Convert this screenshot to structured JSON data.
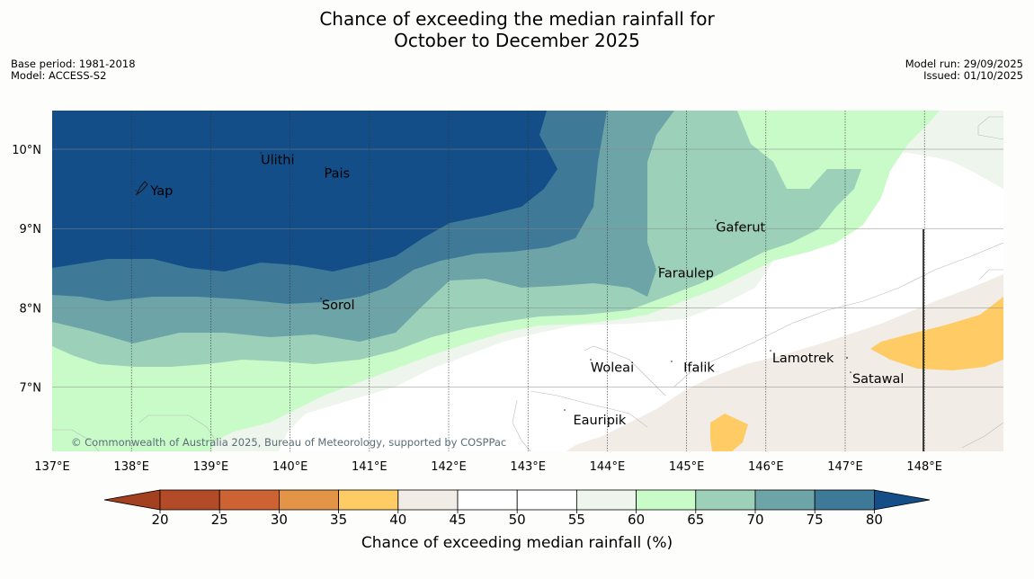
{
  "title": {
    "line1": "Chance of exceeding the median rainfall for",
    "line2": "October to December 2025"
  },
  "meta_left": {
    "base_period": "Base period: 1981-2018",
    "model": "Model: ACCESS-S2"
  },
  "meta_right": {
    "model_run": "Model run: 29/09/2025",
    "issued": "Issued: 01/10/2025"
  },
  "map": {
    "lat_labels": [
      "10°N",
      "9°N",
      "8°N",
      "7°N"
    ],
    "lon_labels": [
      "137°E",
      "138°E",
      "139°E",
      "140°E",
      "141°E",
      "142°E",
      "143°E",
      "144°E",
      "145°E",
      "146°E",
      "147°E",
      "148°E"
    ],
    "places": [
      "Yap",
      "Ulithi",
      "Pais",
      "Gaferut",
      "Faraulep",
      "Sorol",
      "Lamotrek",
      "Woleai",
      "Ifalik",
      "Satawal",
      "Eauripik"
    ],
    "copyright": "© Commonwealth of Australia 2025, Bureau of Meteorology, supported by COSPPac"
  },
  "colorbar": {
    "ticks": [
      "20",
      "25",
      "30",
      "35",
      "40",
      "45",
      "50",
      "55",
      "60",
      "65",
      "70",
      "75",
      "80"
    ],
    "colors": [
      "#b34a28",
      "#cd6233",
      "#e39447",
      "#fecb65",
      "#f2ece6",
      "#ffffff",
      "#ffffff",
      "#edf5ec",
      "#c8fbc8",
      "#9cd0b9",
      "#6da4a7",
      "#3f7998"
    ],
    "under_color": "#a3401f",
    "over_color": "#134e88",
    "label": "Chance of exceeding median rainfall (%)"
  }
}
